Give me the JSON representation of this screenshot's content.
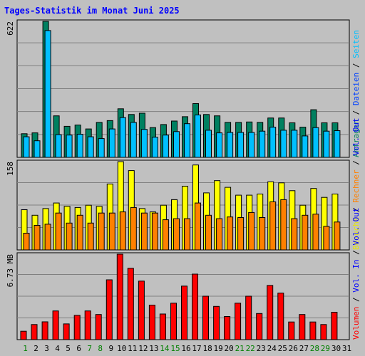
{
  "title": "Tages-Statistik im Monat Juni 2025",
  "colors": {
    "background": "#c0c0c0",
    "title": "#0000ff",
    "anfragen": "#008060",
    "dateien": "#0040ff",
    "seiten": "#00c0ff",
    "besuche": "#ffff00",
    "rechner": "#ff8000",
    "volumen": "#ff0000",
    "weekend_tick": "#008000",
    "weekday_tick": "#000000"
  },
  "chart_data": {
    "type": "bar",
    "categories": [
      "1",
      "2",
      "3",
      "4",
      "5",
      "6",
      "7",
      "8",
      "9",
      "10",
      "11",
      "12",
      "13",
      "14",
      "15",
      "16",
      "17",
      "18",
      "19",
      "20",
      "21",
      "22",
      "23",
      "24",
      "25",
      "26",
      "27",
      "28",
      "29",
      "30",
      "31"
    ],
    "weekend_days": [
      "1",
      "7",
      "8",
      "14",
      "15",
      "21",
      "22",
      "28",
      "29"
    ],
    "panels": [
      {
        "id": "requests",
        "max_label": "622",
        "ylim": [
          0,
          622
        ],
        "side_labels": [
          {
            "text": "Anfragen",
            "color": "#008060"
          },
          {
            "text": " / ",
            "color": "#000000"
          },
          {
            "text": "Dateien",
            "color": "#0040ff"
          },
          {
            "text": " / ",
            "color": "#000000"
          },
          {
            "text": "Seiten",
            "color": "#00c0ff"
          }
        ],
        "series": [
          {
            "name": "Anfragen",
            "color": "#008060",
            "values": [
              108,
              112,
              622,
              190,
              142,
              148,
              130,
              160,
              168,
              222,
              196,
              202,
              136,
              150,
              166,
              186,
              246,
              196,
              190,
              160,
              160,
              162,
              160,
              180,
              180,
              158,
              138,
              218,
              158,
              158,
              null
            ]
          },
          {
            "name": "Seiten",
            "color": "#00c0ff",
            "values": [
              94,
              76,
              580,
              104,
              102,
              106,
              94,
              86,
              130,
              182,
              160,
              128,
              92,
              102,
              118,
              154,
              194,
              124,
              112,
              114,
              114,
              114,
              120,
              138,
              124,
              124,
              98,
              136,
              120,
              122,
              null
            ]
          }
        ]
      },
      {
        "id": "visits",
        "max_label": "158",
        "ylim": [
          0,
          158
        ],
        "side_labels": [
          {
            "text": "Besuche",
            "color": "#e8e800"
          },
          {
            "text": " / ",
            "color": "#000000"
          },
          {
            "text": "Rechner",
            "color": "#ff8000"
          },
          {
            "text": " / ",
            "color": "#000000"
          },
          {
            "text": "Vol. Out",
            "color": "#0000ff"
          }
        ],
        "series": [
          {
            "name": "Besuche",
            "color": "#ffff00",
            "values": [
              72,
              62,
              74,
              84,
              78,
              76,
              80,
              78,
              118,
              158,
              142,
              74,
              68,
              80,
              90,
              114,
              152,
              102,
              124,
              112,
              98,
              98,
              100,
              122,
              120,
              106,
              80,
              110,
              94,
              100,
              null
            ]
          },
          {
            "name": "Rechner",
            "color": "#ff8000",
            "values": [
              30,
              44,
              46,
              66,
              48,
              62,
              48,
              66,
              66,
              68,
              76,
              66,
              66,
              54,
              56,
              56,
              84,
              62,
              56,
              59,
              58,
              67,
              58,
              86,
              90,
              56,
              62,
              64,
              42,
              50,
              null
            ]
          }
        ]
      },
      {
        "id": "volume",
        "max_label": "6.73 MB",
        "ylim": [
          0,
          6.73
        ],
        "side_labels": [
          {
            "text": "Volumen",
            "color": "#ff0000"
          },
          {
            "text": " / ",
            "color": "#000000"
          },
          {
            "text": "Vol. In",
            "color": "#0000ff"
          },
          {
            "text": " / ",
            "color": "#000000"
          },
          {
            "text": "Vol. Out",
            "color": "#0000ff"
          }
        ],
        "series": [
          {
            "name": "Volumen",
            "color": "#ff0000",
            "values": [
              0.66,
              1.19,
              1.4,
              2.26,
              1.24,
              1.91,
              2.26,
              1.98,
              4.71,
              6.73,
              5.62,
              4.61,
              2.72,
              2.02,
              2.87,
              4.22,
              5.16,
              3.42,
              2.62,
              1.82,
              2.87,
              3.42,
              2.06,
              4.27,
              3.67,
              1.39,
              1.98,
              1.39,
              1.19,
              2.16,
              null
            ]
          }
        ]
      }
    ]
  }
}
